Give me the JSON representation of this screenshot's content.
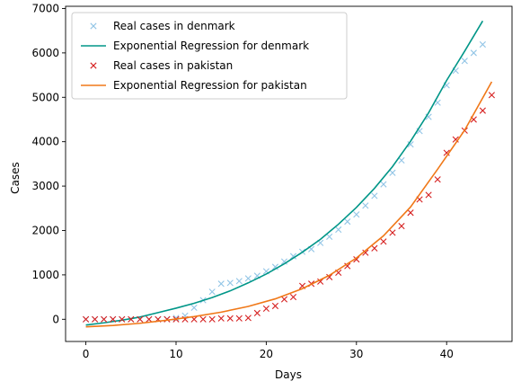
{
  "chart_data": {
    "type": "line",
    "xlabel": "Days",
    "ylabel": "Cases",
    "xlim": [
      -2.25,
      47.25
    ],
    "ylim": [
      -500,
      7050
    ],
    "xticks": [
      0,
      10,
      20,
      30,
      40
    ],
    "yticks": [
      0,
      1000,
      2000,
      3000,
      4000,
      5000,
      6000,
      7000
    ],
    "grid": false,
    "legend_position": "top-left",
    "series": [
      {
        "name": "Real cases in denmark",
        "kind": "scatter",
        "marker": "x",
        "color": "#92c5e6",
        "x": [
          0,
          1,
          2,
          3,
          4,
          5,
          6,
          7,
          8,
          9,
          10,
          11,
          12,
          13,
          14,
          15,
          16,
          17,
          18,
          19,
          20,
          21,
          22,
          23,
          24,
          25,
          26,
          27,
          28,
          29,
          30,
          31,
          32,
          33,
          34,
          35,
          36,
          37,
          38,
          39,
          40,
          41,
          42,
          43,
          44
        ],
        "y": [
          0,
          0,
          0,
          0,
          0,
          0,
          0,
          0,
          0,
          5,
          30,
          80,
          260,
          430,
          620,
          800,
          820,
          860,
          920,
          980,
          1080,
          1180,
          1300,
          1420,
          1520,
          1580,
          1720,
          1860,
          2020,
          2200,
          2360,
          2560,
          2780,
          3040,
          3300,
          3580,
          3940,
          4240,
          4560,
          4880,
          5270,
          5600,
          5820,
          6000,
          6190
        ]
      },
      {
        "name": "Exponential Regression for denmark",
        "kind": "line",
        "color": "#009688",
        "x": [
          0,
          2,
          4,
          6,
          8,
          10,
          12,
          14,
          16,
          18,
          20,
          22,
          24,
          26,
          28,
          30,
          32,
          34,
          36,
          38,
          40,
          42,
          44
        ],
        "y": [
          -130,
          -80,
          -20,
          50,
          150,
          250,
          360,
          490,
          640,
          820,
          1020,
          1250,
          1510,
          1800,
          2140,
          2520,
          2950,
          3440,
          4010,
          4650,
          5380,
          6040,
          6720
        ]
      },
      {
        "name": "Real cases in pakistan",
        "kind": "scatter",
        "marker": "x",
        "color": "#d62020",
        "x": [
          0,
          1,
          2,
          3,
          4,
          5,
          6,
          7,
          8,
          9,
          10,
          11,
          12,
          13,
          14,
          15,
          16,
          17,
          18,
          19,
          20,
          21,
          22,
          23,
          24,
          25,
          26,
          27,
          28,
          29,
          30,
          31,
          32,
          33,
          34,
          35,
          36,
          37,
          38,
          39,
          40,
          41,
          42,
          43,
          44,
          45
        ],
        "y": [
          0,
          0,
          0,
          0,
          0,
          0,
          0,
          0,
          0,
          0,
          0,
          0,
          0,
          0,
          0,
          20,
          20,
          20,
          30,
          140,
          240,
          300,
          450,
          500,
          750,
          800,
          850,
          950,
          1050,
          1200,
          1350,
          1500,
          1600,
          1750,
          1950,
          2100,
          2400,
          2700,
          2800,
          3150,
          3750,
          4050,
          4250,
          4500,
          4700,
          5050
        ]
      },
      {
        "name": "Exponential Regression for pakistan",
        "kind": "line",
        "color": "#f07818",
        "x": [
          0,
          3,
          6,
          9,
          12,
          15,
          18,
          21,
          24,
          27,
          30,
          33,
          36,
          39,
          42,
          45
        ],
        "y": [
          -170,
          -140,
          -90,
          -20,
          60,
          160,
          290,
          460,
          690,
          990,
          1380,
          1880,
          2530,
          3380,
          4260,
          5350
        ]
      }
    ]
  }
}
